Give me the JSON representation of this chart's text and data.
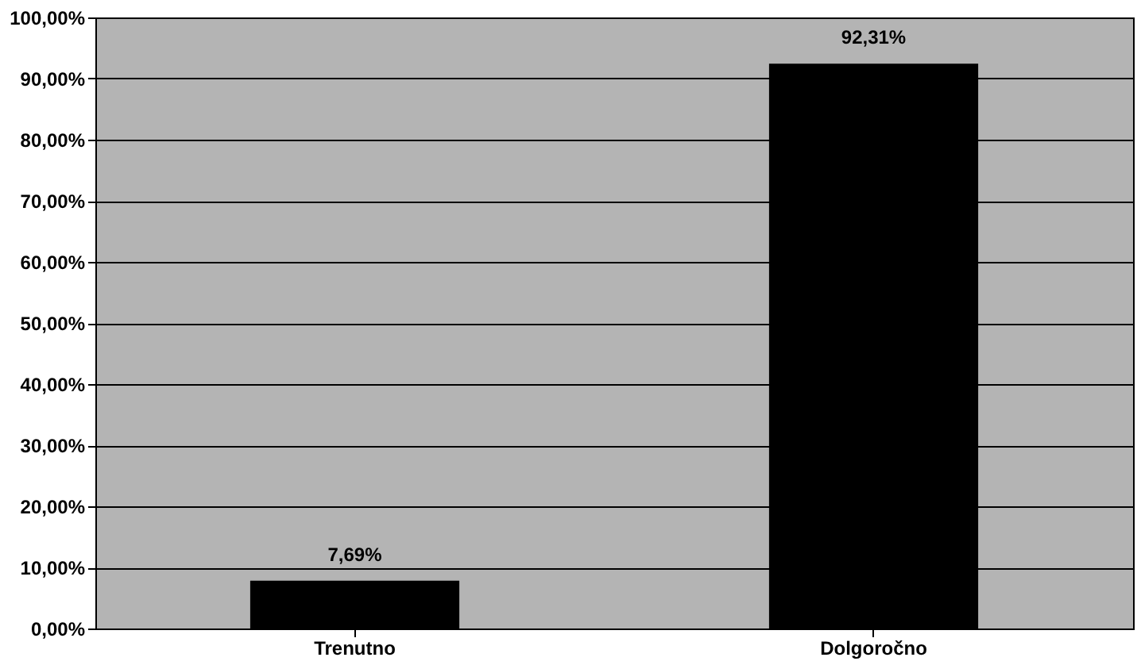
{
  "chart_data": {
    "type": "bar",
    "categories": [
      "Trenutno",
      "Dolgoročno"
    ],
    "values": [
      7.69,
      92.31
    ],
    "color": "#000000",
    "value_labels": [
      "7,69%",
      "92,31%"
    ],
    "ylim": [
      0,
      100
    ],
    "yticks": [
      {
        "value": 0,
        "label": "0,00%"
      },
      {
        "value": 10,
        "label": "10,00%"
      },
      {
        "value": 20,
        "label": "20,00%"
      },
      {
        "value": 30,
        "label": "30,00%"
      },
      {
        "value": 40,
        "label": "40,00%"
      },
      {
        "value": 50,
        "label": "50,00%"
      },
      {
        "value": 60,
        "label": "60,00%"
      },
      {
        "value": 70,
        "label": "70,00%"
      },
      {
        "value": 80,
        "label": "80,00%"
      },
      {
        "value": 90,
        "label": "90,00%"
      },
      {
        "value": 100,
        "label": "100,00%"
      }
    ],
    "grid": "y"
  }
}
